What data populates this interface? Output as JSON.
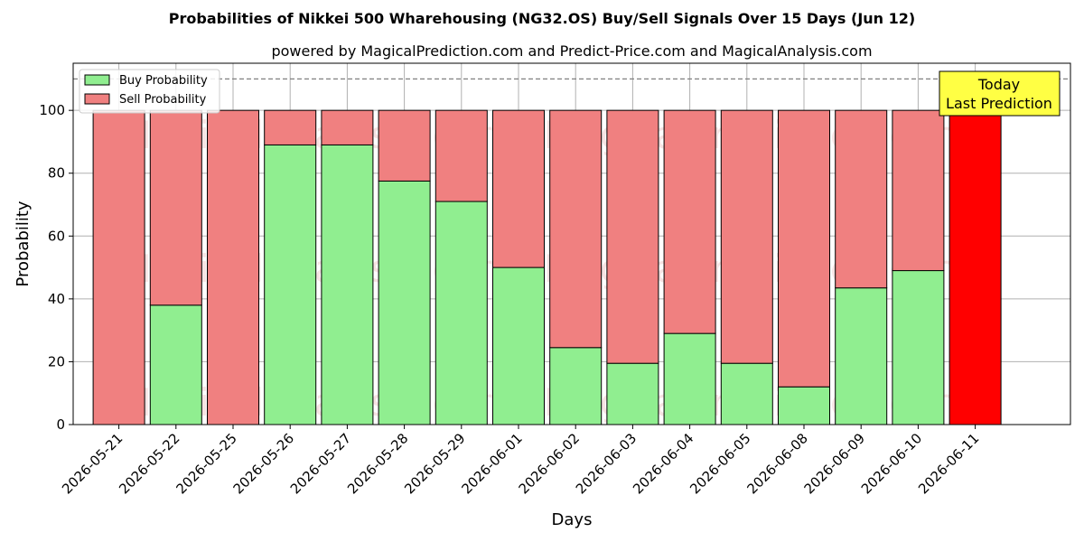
{
  "chart_data": {
    "type": "bar",
    "stacked": true,
    "title": "Probabilities of Nikkei 500 Wharehousing (NG32.OS) Buy/Sell Signals Over 15 Days (Jun 12)",
    "subtitle": "powered by MagicalPrediction.com and Predict-Price.com and MagicalAnalysis.com",
    "xlabel": "Days",
    "ylabel": "Probability",
    "ylim": [
      0,
      115
    ],
    "yticks": [
      0,
      20,
      40,
      60,
      80,
      100
    ],
    "grid": true,
    "legend_position": "top-left",
    "categories": [
      "2026-05-21",
      "2026-05-22",
      "2026-05-25",
      "2026-05-26",
      "2026-05-27",
      "2026-05-28",
      "2026-05-29",
      "2026-06-01",
      "2026-06-02",
      "2026-06-03",
      "2026-06-04",
      "2026-06-05",
      "2026-06-08",
      "2026-06-09",
      "2026-06-10",
      "2026-06-11"
    ],
    "series": [
      {
        "name": "Buy Probability",
        "color": "#90ee90",
        "values": [
          0,
          38,
          0,
          89,
          89,
          77.5,
          71,
          50,
          24.5,
          19.5,
          29,
          19.5,
          12,
          43.5,
          49,
          0
        ]
      },
      {
        "name": "Sell Probability",
        "color": "#f08080",
        "values": [
          100,
          62,
          100,
          11,
          11,
          22.5,
          29,
          50,
          75.5,
          80.5,
          71,
          80.5,
          88,
          56.5,
          51,
          100
        ]
      }
    ],
    "highlight": {
      "category": "2026-06-11",
      "color": "#ff0000"
    },
    "reference_line": {
      "y": 110,
      "style": "dashed",
      "color": "#808080"
    },
    "annotation": {
      "lines": [
        "Today",
        "Last Prediction"
      ],
      "background": "#ffff44"
    },
    "watermarks": [
      "MagicalAnalysis.com",
      "MagicalPrediction.com"
    ]
  }
}
